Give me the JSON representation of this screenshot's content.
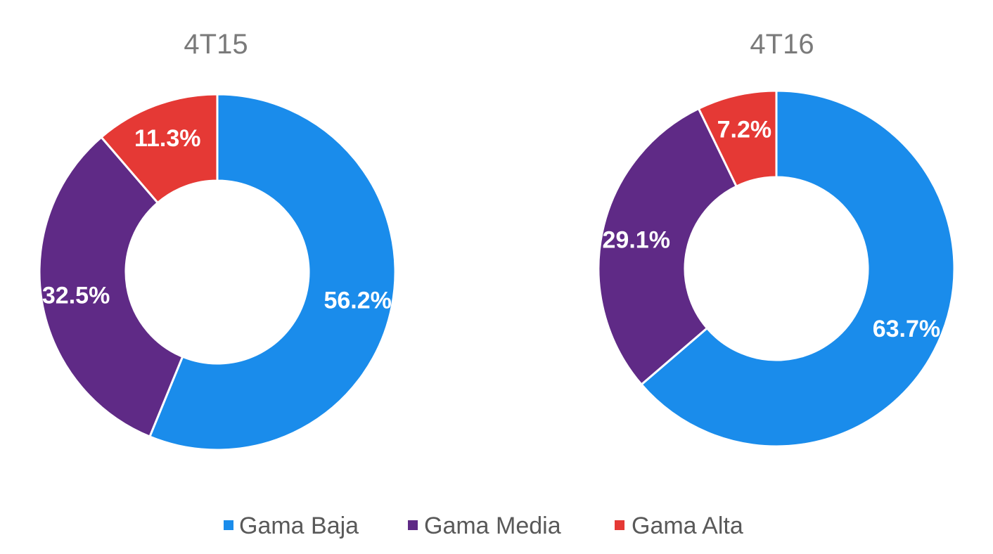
{
  "chart_data": {
    "type": "pie",
    "variant": "donut",
    "legend_position": "bottom",
    "series_names": [
      "Gama Baja",
      "Gama Media",
      "Gama Alta"
    ],
    "colors": {
      "Gama Baja": "#1a8ceb",
      "Gama Media": "#5f2a86",
      "Gama Alta": "#e53935"
    },
    "charts": [
      {
        "title": "4T15",
        "slices": [
          {
            "name": "Gama Baja",
            "value": 56.2,
            "label": "56.2%"
          },
          {
            "name": "Gama Media",
            "value": 32.5,
            "label": "32.5%"
          },
          {
            "name": "Gama Alta",
            "value": 11.3,
            "label": "11.3%"
          }
        ]
      },
      {
        "title": "4T16",
        "slices": [
          {
            "name": "Gama Baja",
            "value": 63.7,
            "label": "63.7%"
          },
          {
            "name": "Gama Media",
            "value": 29.1,
            "label": "29.1%"
          },
          {
            "name": "Gama Alta",
            "value": 7.2,
            "label": "7.2%"
          }
        ]
      }
    ]
  }
}
